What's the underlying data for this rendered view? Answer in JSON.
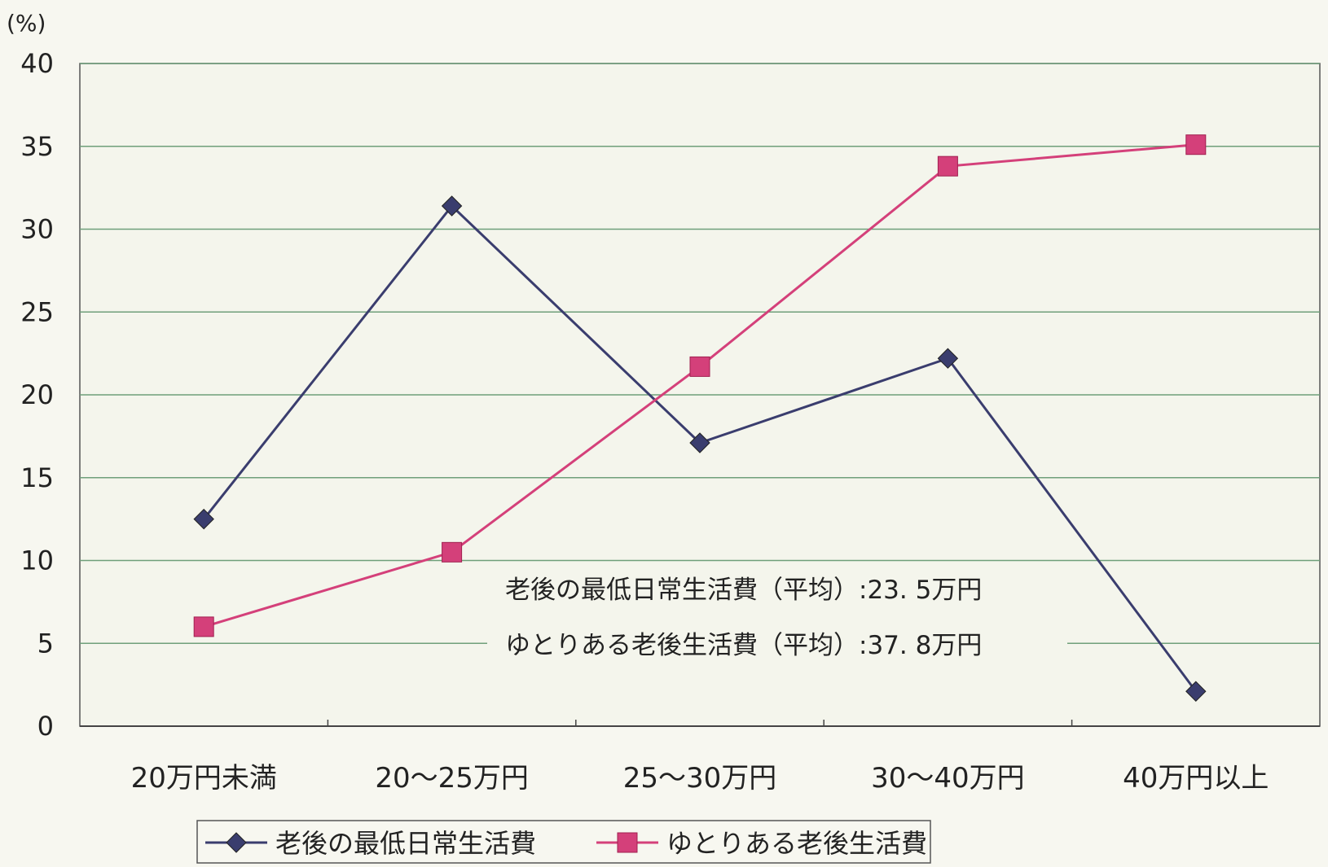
{
  "chart_data": {
    "type": "line",
    "unit": "(%)",
    "categories": [
      "20万円未満",
      "20～25万円",
      "25～30万円",
      "30～40万円",
      "40万円以上"
    ],
    "series": [
      {
        "name": "老後の最低日常生活費",
        "values": [
          12.5,
          31.4,
          17.1,
          22.2,
          2.1
        ],
        "color": "#3a3d6e",
        "marker": "diamond"
      },
      {
        "name": "ゆとりある老後生活費",
        "values": [
          6.0,
          10.5,
          21.7,
          33.8,
          35.1
        ],
        "color": "#d4407a",
        "marker": "square"
      }
    ],
    "ylim": [
      0,
      40
    ],
    "yticks": [
      0,
      5,
      10,
      15,
      20,
      25,
      30,
      35,
      40
    ],
    "grid": true,
    "legend_position": "bottom",
    "annotations": [
      "老後の最低日常生活費（平均）:23. 5万円",
      "ゆとりある老後生活費（平均）:37. 8万円"
    ]
  }
}
